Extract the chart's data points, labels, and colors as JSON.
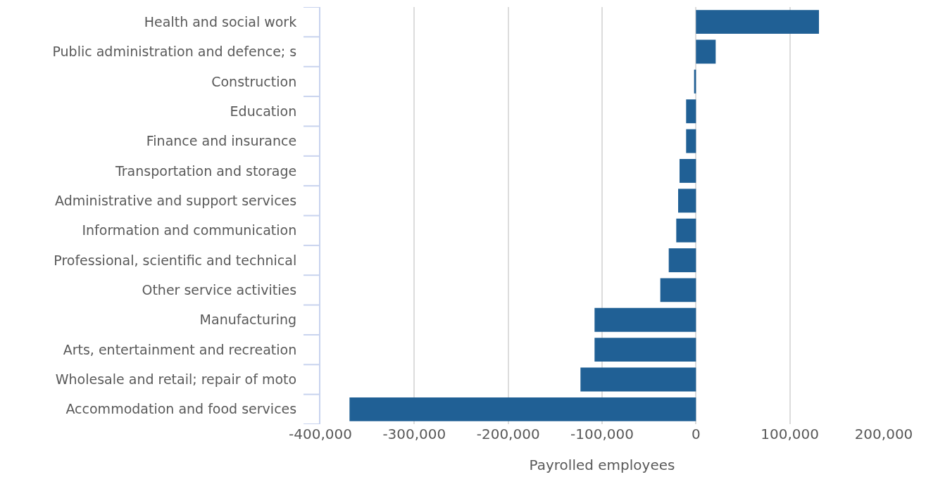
{
  "chart_data": {
    "type": "bar",
    "orientation": "horizontal",
    "xlabel": "Payrolled employees",
    "categories": [
      "Health and social work",
      "Public administration and defence; s",
      "Construction",
      "Education",
      "Finance and insurance",
      "Transportation and storage",
      "Administrative and support services",
      "Information and communication",
      "Professional, scientific and technical",
      "Other service activities",
      "Manufacturing",
      "Arts, entertainment and recreation",
      "Wholesale and retail; repair of moto",
      "Accommodation and food services"
    ],
    "values": [
      131000,
      21000,
      -2000,
      -10500,
      -10500,
      -17500,
      -19000,
      -21000,
      -29000,
      -38000,
      -108000,
      -108000,
      -123000,
      -369000
    ],
    "color": "#206095",
    "xlim": [
      -400000,
      200000
    ],
    "xticks": [
      {
        "value": -400000,
        "label": "-400,000"
      },
      {
        "value": -300000,
        "label": "-300,000"
      },
      {
        "value": -200000,
        "label": "-200,000"
      },
      {
        "value": -100000,
        "label": "-100,000"
      },
      {
        "value": 0,
        "label": "0"
      },
      {
        "value": 100000,
        "label": "100,000"
      },
      {
        "value": 200000,
        "label": "200,000"
      }
    ],
    "grid": "x"
  }
}
